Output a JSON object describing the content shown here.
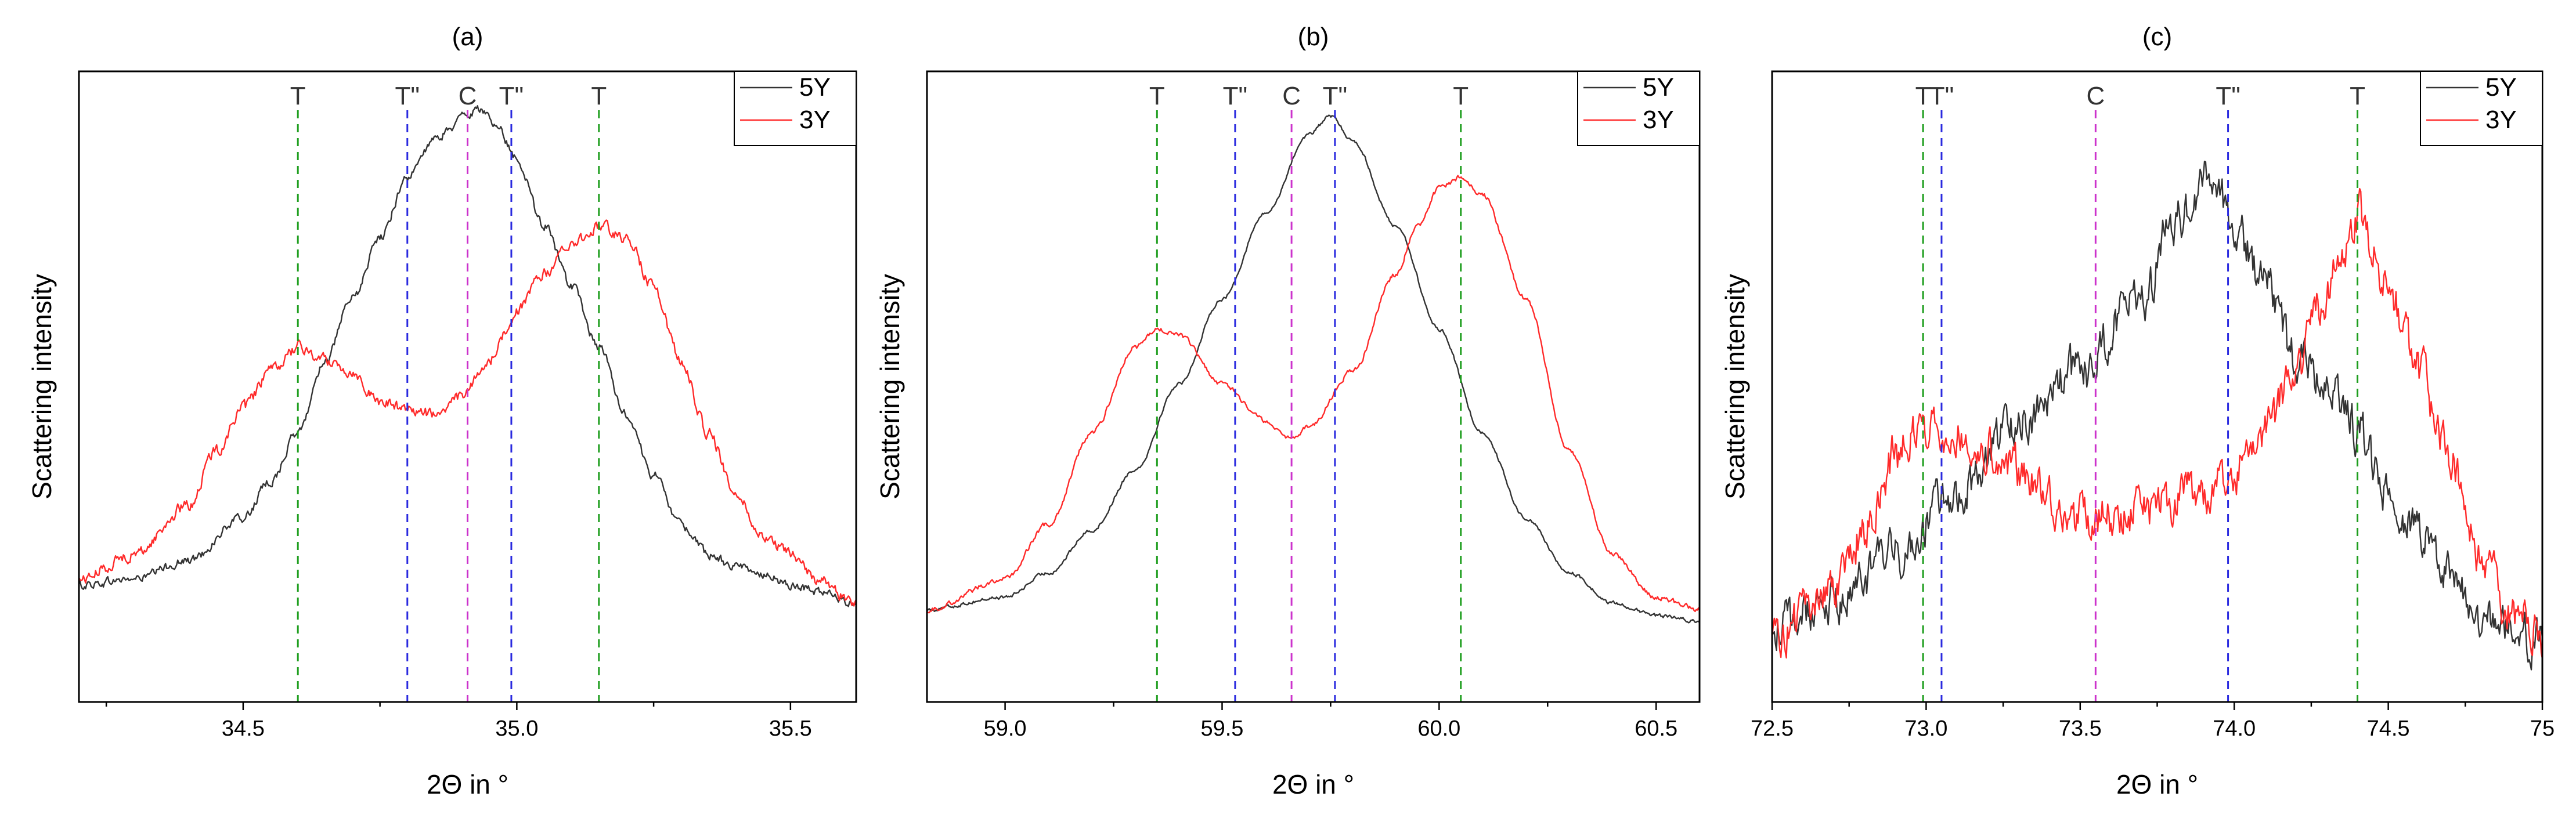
{
  "colors": {
    "series_5Y": "#333333",
    "series_3Y": "#ff2a2a",
    "marker_T": "#1f9e1f",
    "marker_T2": "#2a2adf",
    "marker_C": "#cc33cc"
  },
  "chart_data": [
    {
      "type": "line",
      "title": "(a)",
      "xlabel": "2Θ in °",
      "ylabel": "Scattering intensity",
      "xlim": [
        34.2,
        35.62
      ],
      "ylim": [
        0,
        1
      ],
      "xticks": [
        34.5,
        35.0,
        35.5
      ],
      "xtick_labels": [
        "34.5",
        "35.0",
        "35.5"
      ],
      "legend": [
        "5Y",
        "3Y"
      ],
      "legend_position": "top-right",
      "markers": [
        {
          "label": "T",
          "x": 34.6,
          "kind": "T"
        },
        {
          "label": "T\"",
          "x": 34.8,
          "kind": "T2"
        },
        {
          "label": "C",
          "x": 34.91,
          "kind": "C"
        },
        {
          "label": "T\"",
          "x": 34.99,
          "kind": "T2"
        },
        {
          "label": "T",
          "x": 35.15,
          "kind": "T"
        }
      ],
      "series": [
        {
          "name": "5Y",
          "noise": 0.006,
          "x": [
            34.2,
            34.3,
            34.4,
            34.5,
            34.55,
            34.6,
            34.65,
            34.7,
            34.75,
            34.8,
            34.85,
            34.88,
            34.9,
            34.93,
            34.96,
            35.0,
            35.05,
            35.1,
            35.15,
            35.2,
            35.25,
            35.3,
            35.35,
            35.4,
            35.45,
            35.5,
            35.55,
            35.62
          ],
          "y": [
            0.13,
            0.14,
            0.17,
            0.24,
            0.3,
            0.38,
            0.5,
            0.6,
            0.7,
            0.8,
            0.86,
            0.88,
            0.9,
            0.91,
            0.89,
            0.83,
            0.72,
            0.62,
            0.52,
            0.41,
            0.31,
            0.23,
            0.18,
            0.16,
            0.15,
            0.13,
            0.12,
            0.1
          ]
        },
        {
          "name": "3Y",
          "noise": 0.008,
          "x": [
            34.2,
            34.3,
            34.4,
            34.45,
            34.5,
            34.55,
            34.6,
            34.65,
            34.7,
            34.75,
            34.8,
            34.85,
            34.9,
            34.95,
            35.0,
            35.05,
            35.1,
            35.15,
            35.2,
            35.25,
            35.3,
            35.35,
            35.4,
            35.45,
            35.5,
            35.55,
            35.62
          ],
          "y": [
            0.14,
            0.18,
            0.26,
            0.35,
            0.42,
            0.48,
            0.52,
            0.5,
            0.48,
            0.43,
            0.42,
            0.41,
            0.44,
            0.5,
            0.58,
            0.64,
            0.69,
            0.72,
            0.7,
            0.62,
            0.5,
            0.38,
            0.28,
            0.21,
            0.18,
            0.14,
            0.1
          ]
        }
      ]
    },
    {
      "type": "line",
      "title": "(b)",
      "xlabel": "2Θ in °",
      "ylabel": "Scattering intensity",
      "xlim": [
        58.82,
        60.6
      ],
      "ylim": [
        0,
        1
      ],
      "xticks": [
        59.0,
        59.5,
        60.0,
        60.5
      ],
      "xtick_labels": [
        "59.0",
        "59.5",
        "60.0",
        "60.5"
      ],
      "legend": [
        "5Y",
        "3Y"
      ],
      "legend_position": "top-right",
      "markers": [
        {
          "label": "T",
          "x": 59.35,
          "kind": "T"
        },
        {
          "label": "T\"",
          "x": 59.53,
          "kind": "T2"
        },
        {
          "label": "C",
          "x": 59.66,
          "kind": "C"
        },
        {
          "label": "T\"",
          "x": 59.76,
          "kind": "T2"
        },
        {
          "label": "T",
          "x": 60.05,
          "kind": "T"
        }
      ],
      "series": [
        {
          "name": "5Y",
          "noise": 0.0025,
          "x": [
            58.82,
            59.0,
            59.1,
            59.2,
            59.3,
            59.4,
            59.5,
            59.6,
            59.7,
            59.75,
            59.8,
            59.9,
            60.0,
            60.1,
            60.2,
            60.3,
            60.4,
            60.5,
            60.6
          ],
          "y": [
            0.09,
            0.11,
            0.15,
            0.22,
            0.32,
            0.46,
            0.6,
            0.74,
            0.87,
            0.9,
            0.86,
            0.72,
            0.55,
            0.38,
            0.24,
            0.15,
            0.1,
            0.08,
            0.07
          ]
        },
        {
          "name": "3Y",
          "noise": 0.0035,
          "x": [
            58.82,
            59.0,
            59.1,
            59.2,
            59.3,
            59.35,
            59.4,
            59.5,
            59.6,
            59.66,
            59.7,
            59.8,
            59.9,
            59.95,
            60.0,
            60.05,
            60.1,
            60.2,
            60.3,
            60.4,
            60.5,
            60.6
          ],
          "y": [
            0.09,
            0.14,
            0.23,
            0.38,
            0.52,
            0.55,
            0.54,
            0.46,
            0.4,
            0.37,
            0.39,
            0.48,
            0.64,
            0.72,
            0.78,
            0.8,
            0.77,
            0.6,
            0.35,
            0.18,
            0.11,
            0.09
          ]
        }
      ]
    },
    {
      "type": "line",
      "title": "(c)",
      "xlabel": "2Θ in °",
      "ylabel": "Scattering intensity",
      "xlim": [
        72.5,
        75.0
      ],
      "ylim": [
        0,
        1
      ],
      "xticks": [
        72.5,
        73.0,
        73.5,
        74.0,
        74.5,
        75.0
      ],
      "xtick_labels": [
        "72.5",
        "73.0",
        "73.5",
        "74.0",
        "74.5",
        "75"
      ],
      "legend": [
        "5Y",
        "3Y"
      ],
      "legend_position": "top-right",
      "markers": [
        {
          "label": "T",
          "x": 72.99,
          "kind": "T"
        },
        {
          "label": "T\"",
          "x": 73.05,
          "kind": "T2"
        },
        {
          "label": "C",
          "x": 73.55,
          "kind": "C"
        },
        {
          "label": "T\"",
          "x": 73.98,
          "kind": "T2"
        },
        {
          "label": "T",
          "x": 74.4,
          "kind": "T"
        }
      ],
      "series": [
        {
          "name": "5Y",
          "noise": 0.03,
          "x": [
            72.5,
            72.7,
            72.9,
            73.1,
            73.3,
            73.5,
            73.7,
            73.8,
            73.92,
            74.0,
            74.1,
            74.2,
            74.3,
            74.4,
            74.5,
            74.6,
            74.7,
            74.8,
            74.9,
            75.0
          ],
          "y": [
            0.06,
            0.1,
            0.18,
            0.28,
            0.4,
            0.48,
            0.6,
            0.72,
            0.8,
            0.72,
            0.62,
            0.5,
            0.46,
            0.38,
            0.28,
            0.22,
            0.16,
            0.08,
            0.05,
            0.04
          ]
        },
        {
          "name": "3Y",
          "noise": 0.03,
          "x": [
            72.5,
            72.7,
            72.8,
            72.9,
            73.0,
            73.1,
            73.2,
            73.3,
            73.5,
            73.7,
            73.9,
            74.0,
            74.1,
            74.2,
            74.3,
            74.35,
            74.4,
            74.5,
            74.6,
            74.7,
            74.8,
            74.9,
            75.0
          ],
          "y": [
            0.05,
            0.12,
            0.22,
            0.34,
            0.4,
            0.38,
            0.36,
            0.32,
            0.24,
            0.25,
            0.28,
            0.32,
            0.38,
            0.48,
            0.6,
            0.68,
            0.74,
            0.62,
            0.48,
            0.34,
            0.18,
            0.08,
            0.04
          ]
        }
      ]
    }
  ]
}
